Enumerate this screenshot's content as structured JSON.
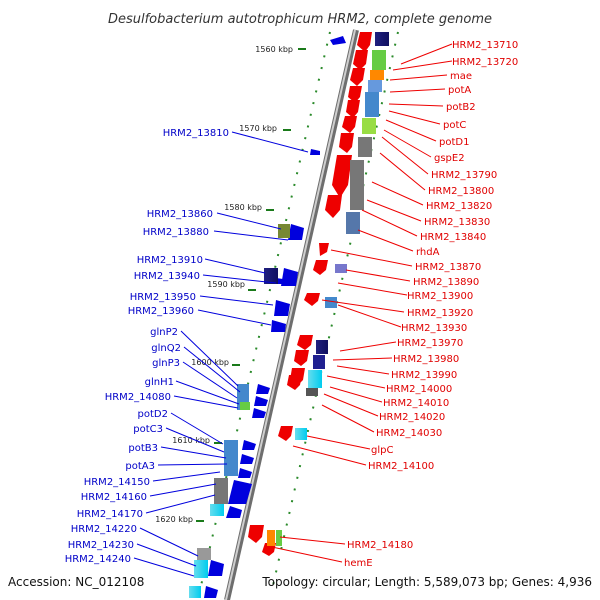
{
  "title": "Desulfobacterium autotrophicum HRM2, complete genome",
  "accession": "Accession: NC_012108",
  "summary": "Topology: circular; Length: 5,589,073 bp; Genes: 4,936",
  "scale_marks": [
    "1560 kbp",
    "1570 kbp",
    "1580 kbp",
    "1590 kbp",
    "1600 kbp",
    "1610 kbp",
    "1620 kbp"
  ],
  "right_labels": [
    "HRM2_13710",
    "HRM2_13720",
    "mae",
    "potA",
    "potB2",
    "potC",
    "potD1",
    "gspE2",
    "HRM2_13790",
    "HRM2_13800",
    "HRM2_13820",
    "HRM2_13830",
    "HRM2_13840",
    "rhdA",
    "HRM2_13870",
    "HRM2_13890",
    "HRM2_13900",
    "HRM2_13920",
    "HRM2_13930",
    "HRM2_13970",
    "HRM2_13980",
    "HRM2_13990",
    "HRM2_14000",
    "HRM2_14010",
    "HRM2_14020",
    "HRM2_14030",
    "glpC",
    "HRM2_14100",
    "HRM2_14180",
    "hemE"
  ],
  "left_labels": [
    "HRM2_13810",
    "HRM2_13860",
    "HRM2_13880",
    "HRM2_13910",
    "HRM2_13940",
    "HRM2_13950",
    "HRM2_13960",
    "glnP2",
    "glnQ2",
    "glnP3",
    "glnH1",
    "HRM2_14080",
    "potD2",
    "potC3",
    "potB3",
    "potA3",
    "HRM2_14150",
    "HRM2_14160",
    "HRM2_14170",
    "HRM2_14220",
    "HRM2_14230",
    "HRM2_14240"
  ],
  "colors": {
    "forward_strand": "#ee0000",
    "reverse_strand": "#0000dd",
    "backbone": "#999999"
  }
}
